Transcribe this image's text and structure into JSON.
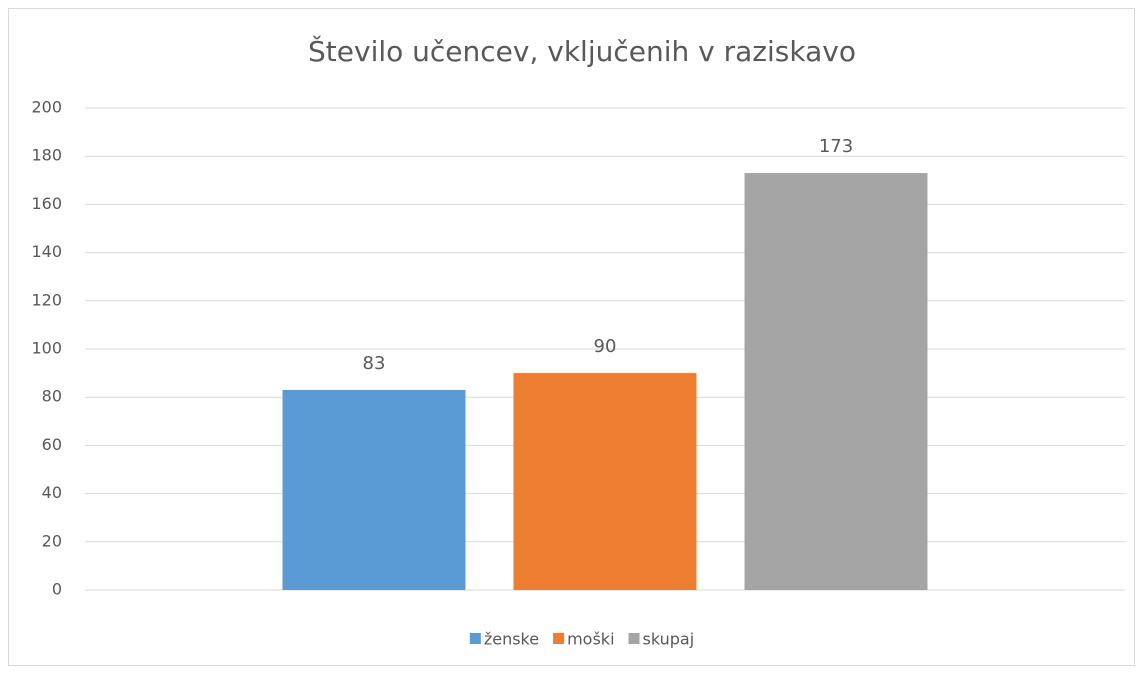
{
  "chart_data": {
    "type": "bar",
    "title": "Število učencev, vključenih v raziskavo",
    "categories": [
      null
    ],
    "series": [
      {
        "name": "ženske",
        "color": "#5b9bd5",
        "values": [
          83
        ]
      },
      {
        "name": "moški",
        "color": "#ed7d31",
        "values": [
          90
        ]
      },
      {
        "name": "skupaj",
        "color": "#a5a5a5",
        "values": [
          173
        ]
      }
    ],
    "ylim": [
      0,
      200
    ],
    "yticks": [
      0,
      20,
      40,
      60,
      80,
      100,
      120,
      140,
      160,
      180,
      200
    ],
    "grid": true,
    "data_labels": true,
    "legend": "bottom"
  }
}
